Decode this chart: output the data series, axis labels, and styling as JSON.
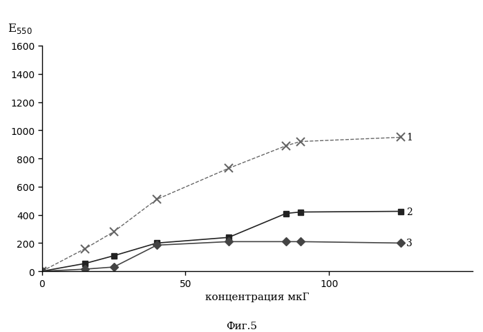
{
  "series": [
    {
      "label": "1",
      "x": [
        0,
        15,
        25,
        40,
        65,
        85,
        90,
        125
      ],
      "y": [
        0,
        160,
        280,
        510,
        730,
        890,
        920,
        950
      ],
      "marker": "x",
      "linestyle": "--",
      "color": "#666666",
      "markersize": 8,
      "linewidth": 1.0,
      "markeredgewidth": 1.5
    },
    {
      "label": "2",
      "x": [
        0,
        15,
        25,
        40,
        65,
        85,
        90,
        125
      ],
      "y": [
        0,
        55,
        110,
        200,
        240,
        410,
        420,
        425
      ],
      "marker": "s",
      "linestyle": "-",
      "color": "#222222",
      "markersize": 6,
      "linewidth": 1.2,
      "markeredgewidth": 1.0
    },
    {
      "label": "3",
      "x": [
        0,
        15,
        25,
        40,
        65,
        85,
        90,
        125
      ],
      "y": [
        0,
        15,
        30,
        185,
        210,
        210,
        210,
        200
      ],
      "marker": "D",
      "linestyle": "-",
      "color": "#444444",
      "markersize": 6,
      "linewidth": 1.2,
      "markeredgewidth": 1.0
    }
  ],
  "xlabel": "концентрация мкГ",
  "caption": "Фиг.5",
  "xlim": [
    0,
    150
  ],
  "ylim": [
    0,
    1600
  ],
  "xticks": [
    0,
    50,
    100
  ],
  "yticks": [
    0,
    200,
    400,
    600,
    800,
    1000,
    1200,
    1400,
    1600
  ]
}
